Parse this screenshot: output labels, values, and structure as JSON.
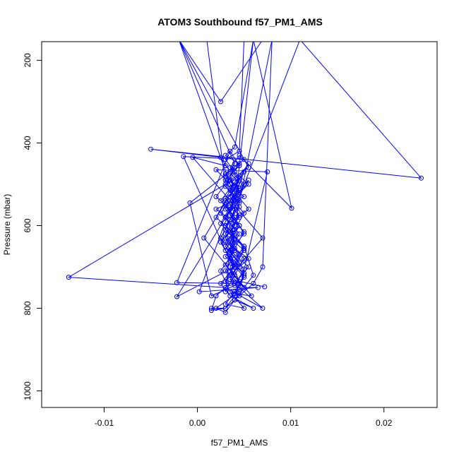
{
  "chart_data": {
    "type": "line",
    "title": "ATOM3 Southbound f57_PM1_AMS",
    "xlabel": "f57_PM1_AMS",
    "ylabel": "Pressure (mbar)",
    "xlim": [
      -0.0167,
      0.0257
    ],
    "ylim": [
      1040,
      155
    ],
    "y_reversed": true,
    "x_ticks": [
      -0.01,
      0.0,
      0.01,
      0.02
    ],
    "x_tick_labels": [
      "-0.01",
      "0.00",
      "0.01",
      "0.02"
    ],
    "y_ticks": [
      200,
      400,
      600,
      800,
      1000
    ],
    "y_tick_labels": [
      "200",
      "400",
      "600",
      "800",
      "1000"
    ],
    "series": [
      {
        "color": "#0000ff",
        "marker": "open-circle",
        "points": [
          [
            0.0015,
            800
          ],
          [
            0.003,
            800
          ],
          [
            0.004,
            770
          ],
          [
            0.0045,
            740
          ],
          [
            0.0035,
            700
          ],
          [
            0.005,
            650
          ],
          [
            0.003,
            600
          ],
          [
            0.0055,
            560
          ],
          [
            0.004,
            520
          ],
          [
            0.0035,
            480
          ],
          [
            0.0045,
            450
          ],
          [
            0.003,
            430
          ],
          [
            0.004,
            410
          ],
          [
            0.006,
            150
          ],
          [
            0.007,
            150
          ],
          [
            0.0025,
            300
          ],
          [
            -0.002,
            150
          ],
          [
            0.0035,
            500
          ],
          [
            0.005,
            530
          ],
          [
            0.002,
            560
          ],
          [
            0.0045,
            600
          ],
          [
            0.003,
            640
          ],
          [
            0.0055,
            680
          ],
          [
            0.0035,
            720
          ],
          [
            0.0045,
            760
          ],
          [
            0.002,
            800
          ],
          [
            0.003,
            810
          ],
          [
            0.004,
            780
          ],
          [
            0.006,
            720
          ],
          [
            0.005,
            650
          ],
          [
            0.003,
            610
          ],
          [
            0.004,
            560
          ],
          [
            0.011,
            150
          ],
          [
            0.024,
            485
          ],
          [
            -0.005,
            415
          ],
          [
            0.0025,
            435
          ],
          [
            0.0035,
            470
          ],
          [
            0.0045,
            500
          ],
          [
            0.003,
            540
          ],
          [
            0.002,
            580
          ],
          [
            0.004,
            620
          ],
          [
            0.003,
            660
          ],
          [
            0.0045,
            700
          ],
          [
            0.0035,
            740
          ],
          [
            0.002,
            770
          ],
          [
            0.0015,
            805
          ],
          [
            0.003,
            800
          ],
          [
            0.0045,
            770
          ],
          [
            0.006,
            740
          ],
          [
            0.007,
            700
          ],
          [
            0.008,
            150
          ],
          [
            0.004,
            600
          ],
          [
            0.0025,
            640
          ],
          [
            0.0035,
            680
          ],
          [
            0.005,
            720
          ],
          [
            0.004,
            760
          ],
          [
            0.003,
            790
          ],
          [
            0.005,
            800
          ],
          [
            0.0035,
            760
          ],
          [
            0.0025,
            710
          ],
          [
            0.004,
            660
          ],
          [
            0.003,
            620
          ],
          [
            0.0045,
            580
          ],
          [
            0.0035,
            540
          ],
          [
            0.0055,
            500
          ],
          [
            0.004,
            470
          ],
          [
            0.003,
            440
          ],
          [
            0.0045,
            420
          ],
          [
            0.005,
            150
          ],
          [
            0.001,
            150
          ],
          [
            0.003,
            500
          ],
          [
            0.002,
            530
          ],
          [
            0.0035,
            560
          ],
          [
            0.004,
            600
          ],
          [
            0.003,
            630
          ],
          [
            0.0045,
            670
          ],
          [
            0.0035,
            710
          ],
          [
            0.005,
            750
          ],
          [
            0.004,
            780
          ],
          [
            0.006,
            800
          ],
          [
            0.0035,
            770
          ],
          [
            0.0025,
            740
          ],
          [
            0.004,
            700
          ],
          [
            0.0035,
            660
          ],
          [
            0.005,
            620
          ],
          [
            0.004,
            580
          ],
          [
            0.003,
            550
          ],
          [
            0.0045,
            520
          ],
          [
            0.0035,
            490
          ],
          [
            0.0055,
            460
          ],
          [
            -0.002,
            150
          ],
          [
            0.004,
            450
          ],
          [
            0.003,
            480
          ],
          [
            0.0045,
            510
          ],
          [
            0.0035,
            540
          ],
          [
            0.0025,
            570
          ],
          [
            0.004,
            610
          ],
          [
            0.003,
            650
          ],
          [
            0.0045,
            690
          ],
          [
            0.0035,
            730
          ],
          [
            0.007,
            800
          ],
          [
            0.003,
            750
          ],
          [
            -0.0138,
            725
          ],
          [
            0.0045,
            480
          ],
          [
            0.0035,
            510
          ],
          [
            0.0025,
            540
          ],
          [
            0.004,
            580
          ],
          [
            0.003,
            620
          ],
          [
            0.005,
            660
          ],
          [
            0.004,
            700
          ],
          [
            -0.0022,
            772
          ],
          [
            0.0055,
            490
          ],
          [
            0.004,
            520
          ],
          [
            0.003,
            560
          ],
          [
            0.0045,
            600
          ],
          [
            0.0035,
            640
          ],
          [
            0.005,
            680
          ],
          [
            0.004,
            720
          ],
          [
            0.003,
            760
          ],
          [
            0.006,
            150
          ],
          [
            0.0101,
            558
          ],
          [
            0.0045,
            430
          ],
          [
            0.0035,
            460
          ],
          [
            0.005,
            500
          ],
          [
            0.004,
            540
          ],
          [
            0.003,
            580
          ],
          [
            0.0045,
            620
          ],
          [
            0.0035,
            660
          ],
          [
            0.0055,
            700
          ],
          [
            0.004,
            740
          ],
          [
            -0.0022,
            738
          ],
          [
            0.0035,
            420
          ],
          [
            0.0045,
            455
          ],
          [
            0.003,
            490
          ],
          [
            0.004,
            530
          ],
          [
            0.0035,
            575
          ],
          [
            0.005,
            615
          ],
          [
            0.004,
            655
          ],
          [
            0.003,
            695
          ],
          [
            0.0045,
            735
          ],
          [
            -0.0015,
            433
          ],
          [
            0.005,
            440
          ],
          [
            0.003,
            475
          ],
          [
            0.0045,
            515
          ],
          [
            0.0035,
            555
          ],
          [
            0.0025,
            595
          ],
          [
            0.004,
            635
          ],
          [
            0.003,
            675
          ],
          [
            0.005,
            715
          ],
          [
            0.0045,
            755
          ],
          [
            0.0075,
            470
          ],
          [
            0.002,
            465
          ],
          [
            0.0035,
            500
          ],
          [
            0.0045,
            540
          ],
          [
            0.003,
            580
          ],
          [
            0.004,
            625
          ],
          [
            0.0035,
            665
          ],
          [
            0.005,
            705
          ],
          [
            0.004,
            745
          ],
          [
            0.0015,
            770
          ],
          [
            -0.0008,
            545
          ],
          [
            0.004,
            460
          ],
          [
            0.003,
            505
          ],
          [
            0.0045,
            545
          ],
          [
            0.0035,
            585
          ],
          [
            0.0025,
            630
          ],
          [
            0.004,
            670
          ],
          [
            0.003,
            710
          ],
          [
            0.005,
            750
          ],
          [
            0.0065,
            750
          ],
          [
            0.0002,
            760
          ],
          [
            0.005,
            470
          ],
          [
            0.0035,
            515
          ],
          [
            0.0045,
            555
          ],
          [
            0.003,
            600
          ],
          [
            0.004,
            640
          ],
          [
            0.0035,
            685
          ],
          [
            0.005,
            725
          ],
          [
            0.004,
            765
          ],
          [
            0.0058,
            770
          ],
          [
            0.0007,
            630
          ],
          [
            0.0055,
            450
          ],
          [
            0.004,
            495
          ],
          [
            0.003,
            535
          ],
          [
            0.0045,
            575
          ],
          [
            0.0035,
            615
          ],
          [
            0.005,
            655
          ],
          [
            0.004,
            695
          ],
          [
            0.003,
            735
          ],
          [
            0.007,
            630
          ],
          [
            -0.0005,
            435
          ],
          [
            0.003,
            455
          ],
          [
            0.0045,
            490
          ],
          [
            0.0035,
            530
          ],
          [
            0.005,
            570
          ],
          [
            0.004,
            610
          ],
          [
            0.003,
            650
          ],
          [
            0.0045,
            690
          ],
          [
            0.0035,
            730
          ],
          [
            0.0072,
            748
          ]
        ]
      }
    ],
    "grid": false,
    "legend": "none"
  }
}
